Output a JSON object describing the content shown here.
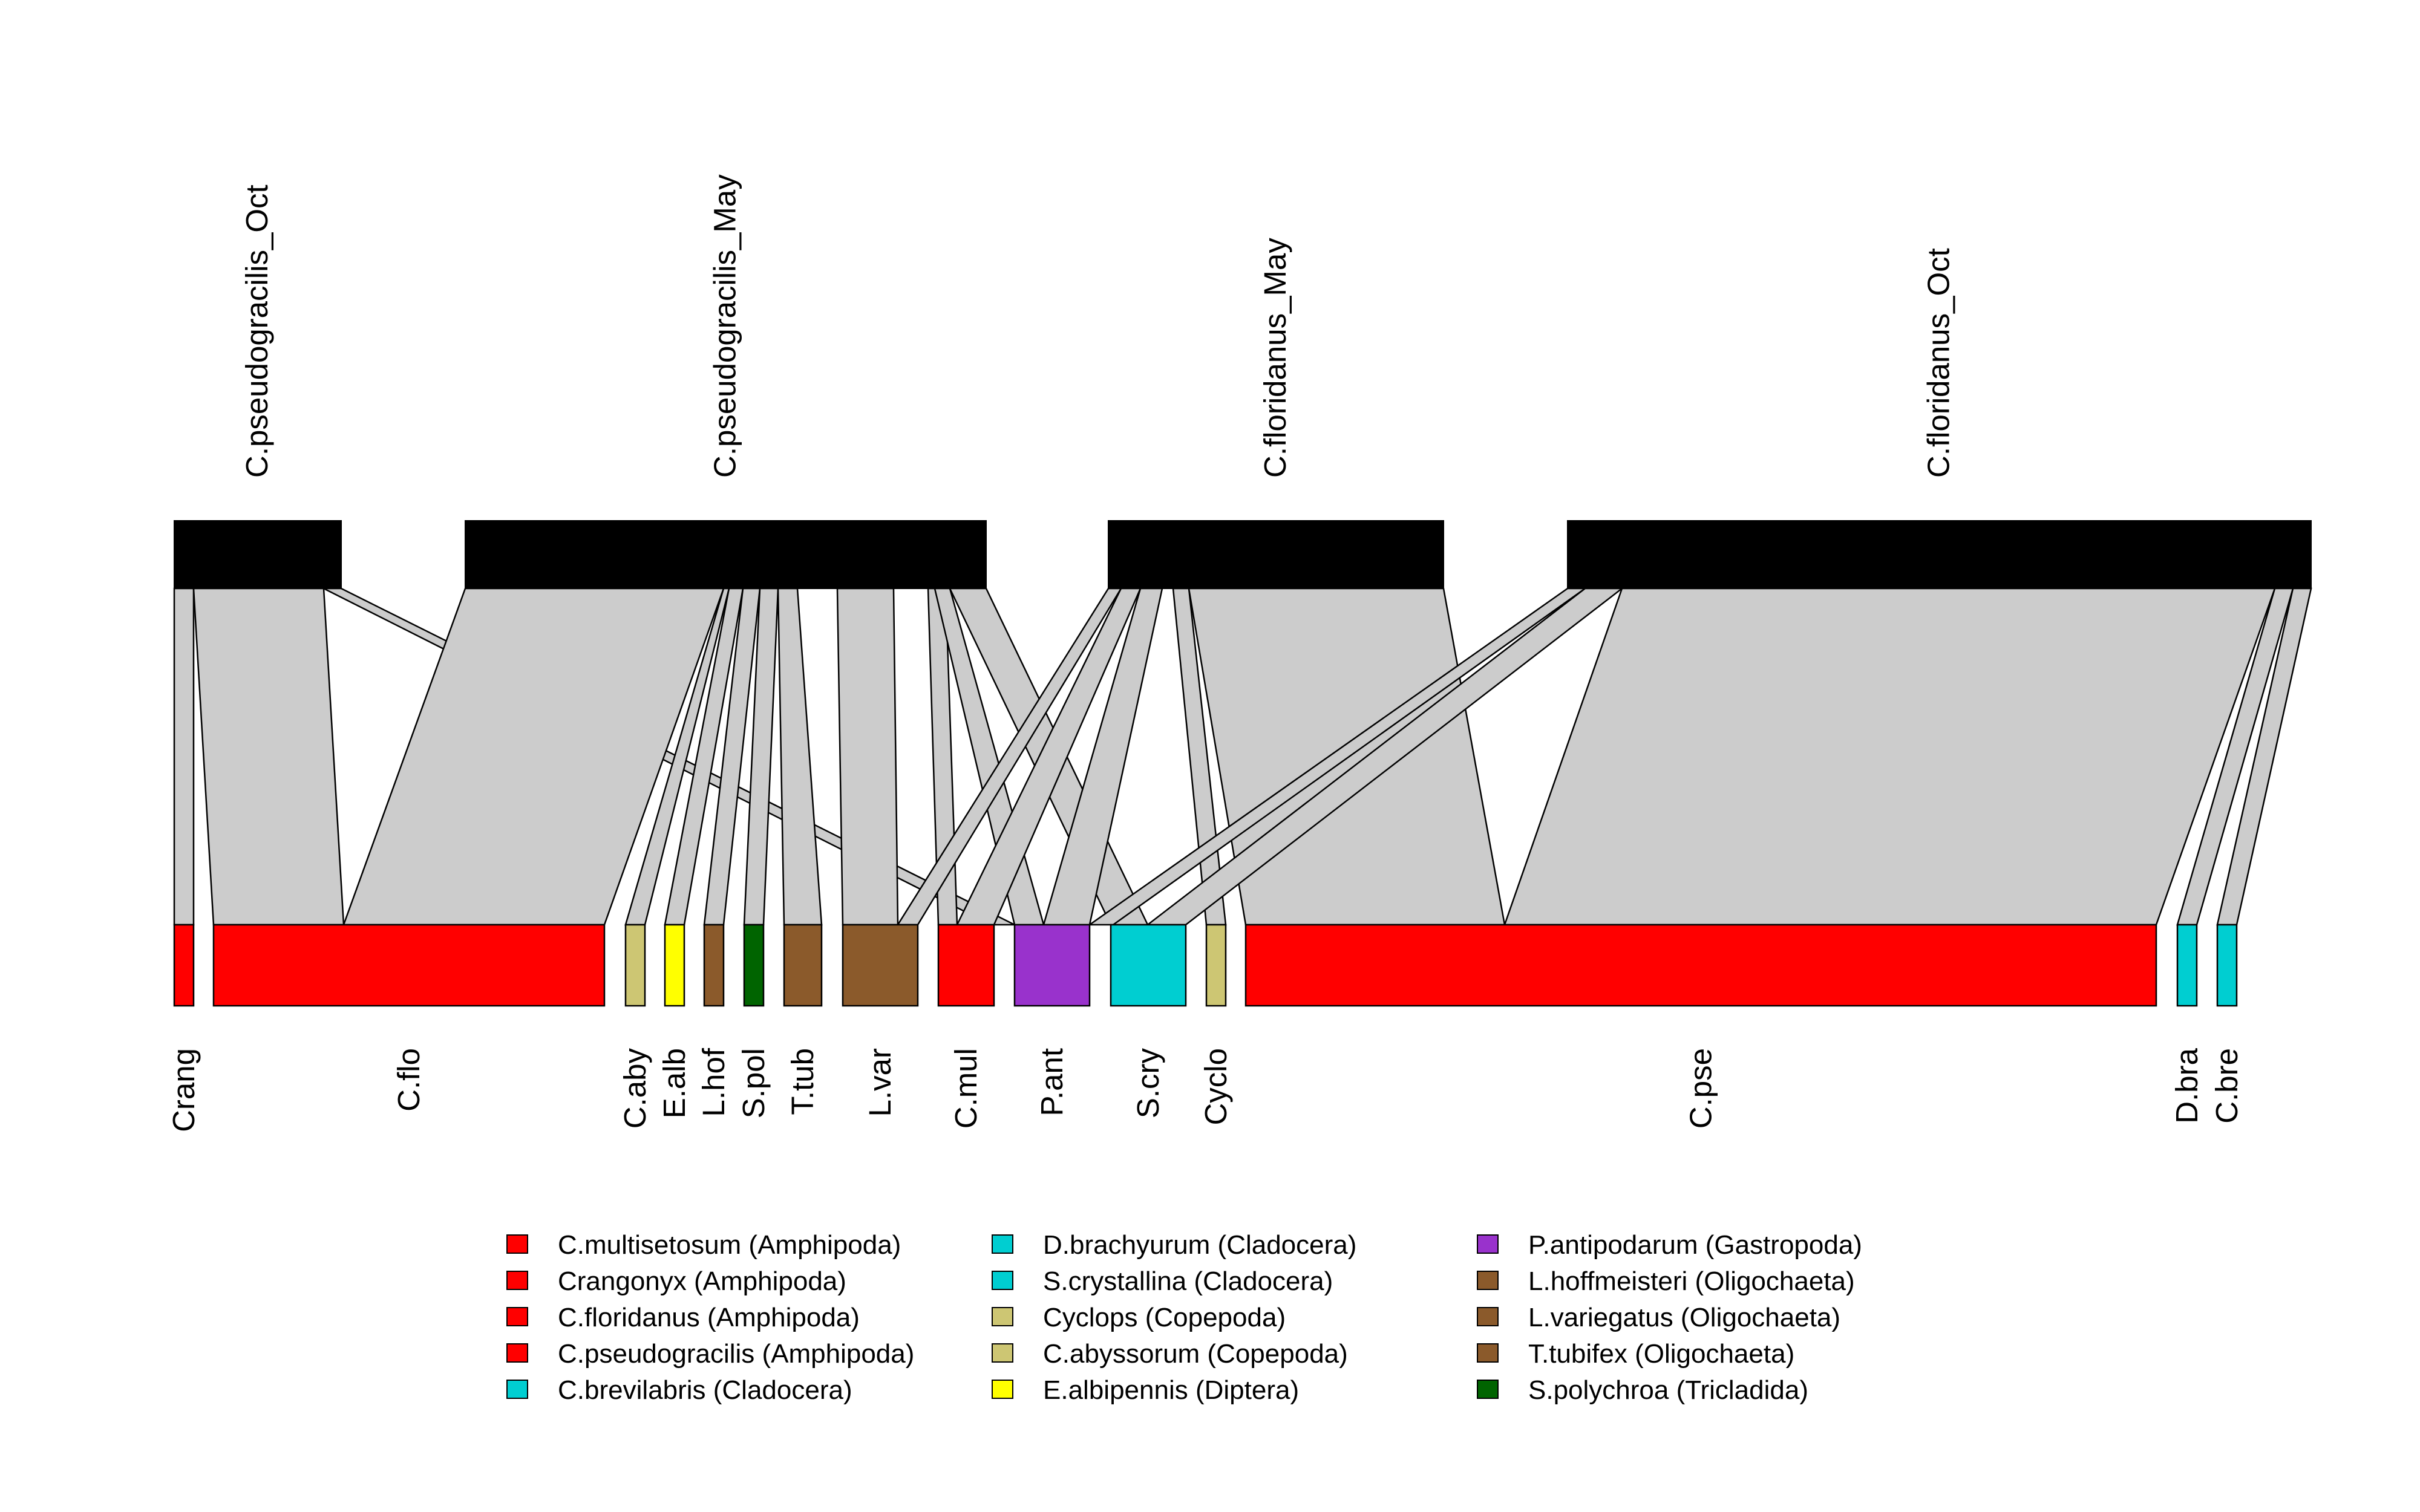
{
  "colors": {
    "amphipoda": "#ff0000",
    "cladocera": "#00ced1",
    "copepoda": "#cdc673",
    "diptera": "#ffff00",
    "gastropoda": "#9932cc",
    "oligochaeta": "#8b5a2b",
    "tricladida": "#006400",
    "predator": "#000000",
    "link": "#cccccc"
  },
  "predators": [
    {
      "label": "C.pseudogracilis_Oct"
    },
    {
      "label": "C.pseudogracilis_May"
    },
    {
      "label": "C.floridanus_May"
    },
    {
      "label": "C.floridanus_Oct"
    }
  ],
  "prey": [
    {
      "label": "Crang",
      "group": "amphipoda"
    },
    {
      "label": "C.flo",
      "group": "amphipoda"
    },
    {
      "label": "C.aby",
      "group": "copepoda"
    },
    {
      "label": "E.alb",
      "group": "diptera"
    },
    {
      "label": "L.hof",
      "group": "oligochaeta"
    },
    {
      "label": "S.pol",
      "group": "tricladida"
    },
    {
      "label": "T.tub",
      "group": "oligochaeta"
    },
    {
      "label": "L.var",
      "group": "oligochaeta"
    },
    {
      "label": "C.mul",
      "group": "amphipoda"
    },
    {
      "label": "P.ant",
      "group": "gastropoda"
    },
    {
      "label": "S.cry",
      "group": "cladocera"
    },
    {
      "label": "Cyclo",
      "group": "copepoda"
    },
    {
      "label": "C.pse",
      "group": "amphipoda"
    },
    {
      "label": "D.bra",
      "group": "cladocera"
    },
    {
      "label": "C.bre",
      "group": "cladocera"
    }
  ],
  "links": [
    {
      "predator": 0,
      "prey": 0
    },
    {
      "predator": 0,
      "prey": 1
    },
    {
      "predator": 0,
      "prey": 9
    },
    {
      "predator": 1,
      "prey": 1
    },
    {
      "predator": 1,
      "prey": 2
    },
    {
      "predator": 1,
      "prey": 3
    },
    {
      "predator": 1,
      "prey": 4
    },
    {
      "predator": 1,
      "prey": 5
    },
    {
      "predator": 1,
      "prey": 6
    },
    {
      "predator": 1,
      "prey": 7
    },
    {
      "predator": 1,
      "prey": 8
    },
    {
      "predator": 1,
      "prey": 9
    },
    {
      "predator": 1,
      "prey": 10
    },
    {
      "predator": 2,
      "prey": 7
    },
    {
      "predator": 2,
      "prey": 8
    },
    {
      "predator": 2,
      "prey": 9
    },
    {
      "predator": 2,
      "prey": 11
    },
    {
      "predator": 2,
      "prey": 12
    },
    {
      "predator": 3,
      "prey": 9
    },
    {
      "predator": 3,
      "prey": 10
    },
    {
      "predator": 3,
      "prey": 12
    },
    {
      "predator": 3,
      "prey": 13
    },
    {
      "predator": 3,
      "prey": 14
    }
  ],
  "legend": [
    {
      "label": "C.multisetosum (Amphipoda)",
      "group": "amphipoda"
    },
    {
      "label": "Crangonyx  (Amphipoda)",
      "group": "amphipoda"
    },
    {
      "label": "C.floridanus  (Amphipoda)",
      "group": "amphipoda"
    },
    {
      "label": "C.pseudogracilis (Amphipoda)",
      "group": "amphipoda"
    },
    {
      "label": "C.brevilabris (Cladocera)",
      "group": "cladocera"
    },
    {
      "label": "D.brachyurum (Cladocera)",
      "group": "cladocera"
    },
    {
      "label": "S.crystallina (Cladocera)",
      "group": "cladocera"
    },
    {
      "label": "Cyclops (Copepoda)",
      "group": "copepoda"
    },
    {
      "label": "C.abyssorum  (Copepoda)",
      "group": "copepoda"
    },
    {
      "label": "E.albipennis (Diptera)",
      "group": "diptera"
    },
    {
      "label": "P.antipodarum (Gastropoda)",
      "group": "gastropoda"
    },
    {
      "label": "L.hoffmeisteri (Oligochaeta)",
      "group": "oligochaeta"
    },
    {
      "label": "L.variegatus (Oligochaeta)",
      "group": "oligochaeta"
    },
    {
      "label": "T.tubifex (Oligochaeta)",
      "group": "oligochaeta"
    },
    {
      "label": "S.polychroa (Tricladida)",
      "group": "tricladida"
    }
  ]
}
